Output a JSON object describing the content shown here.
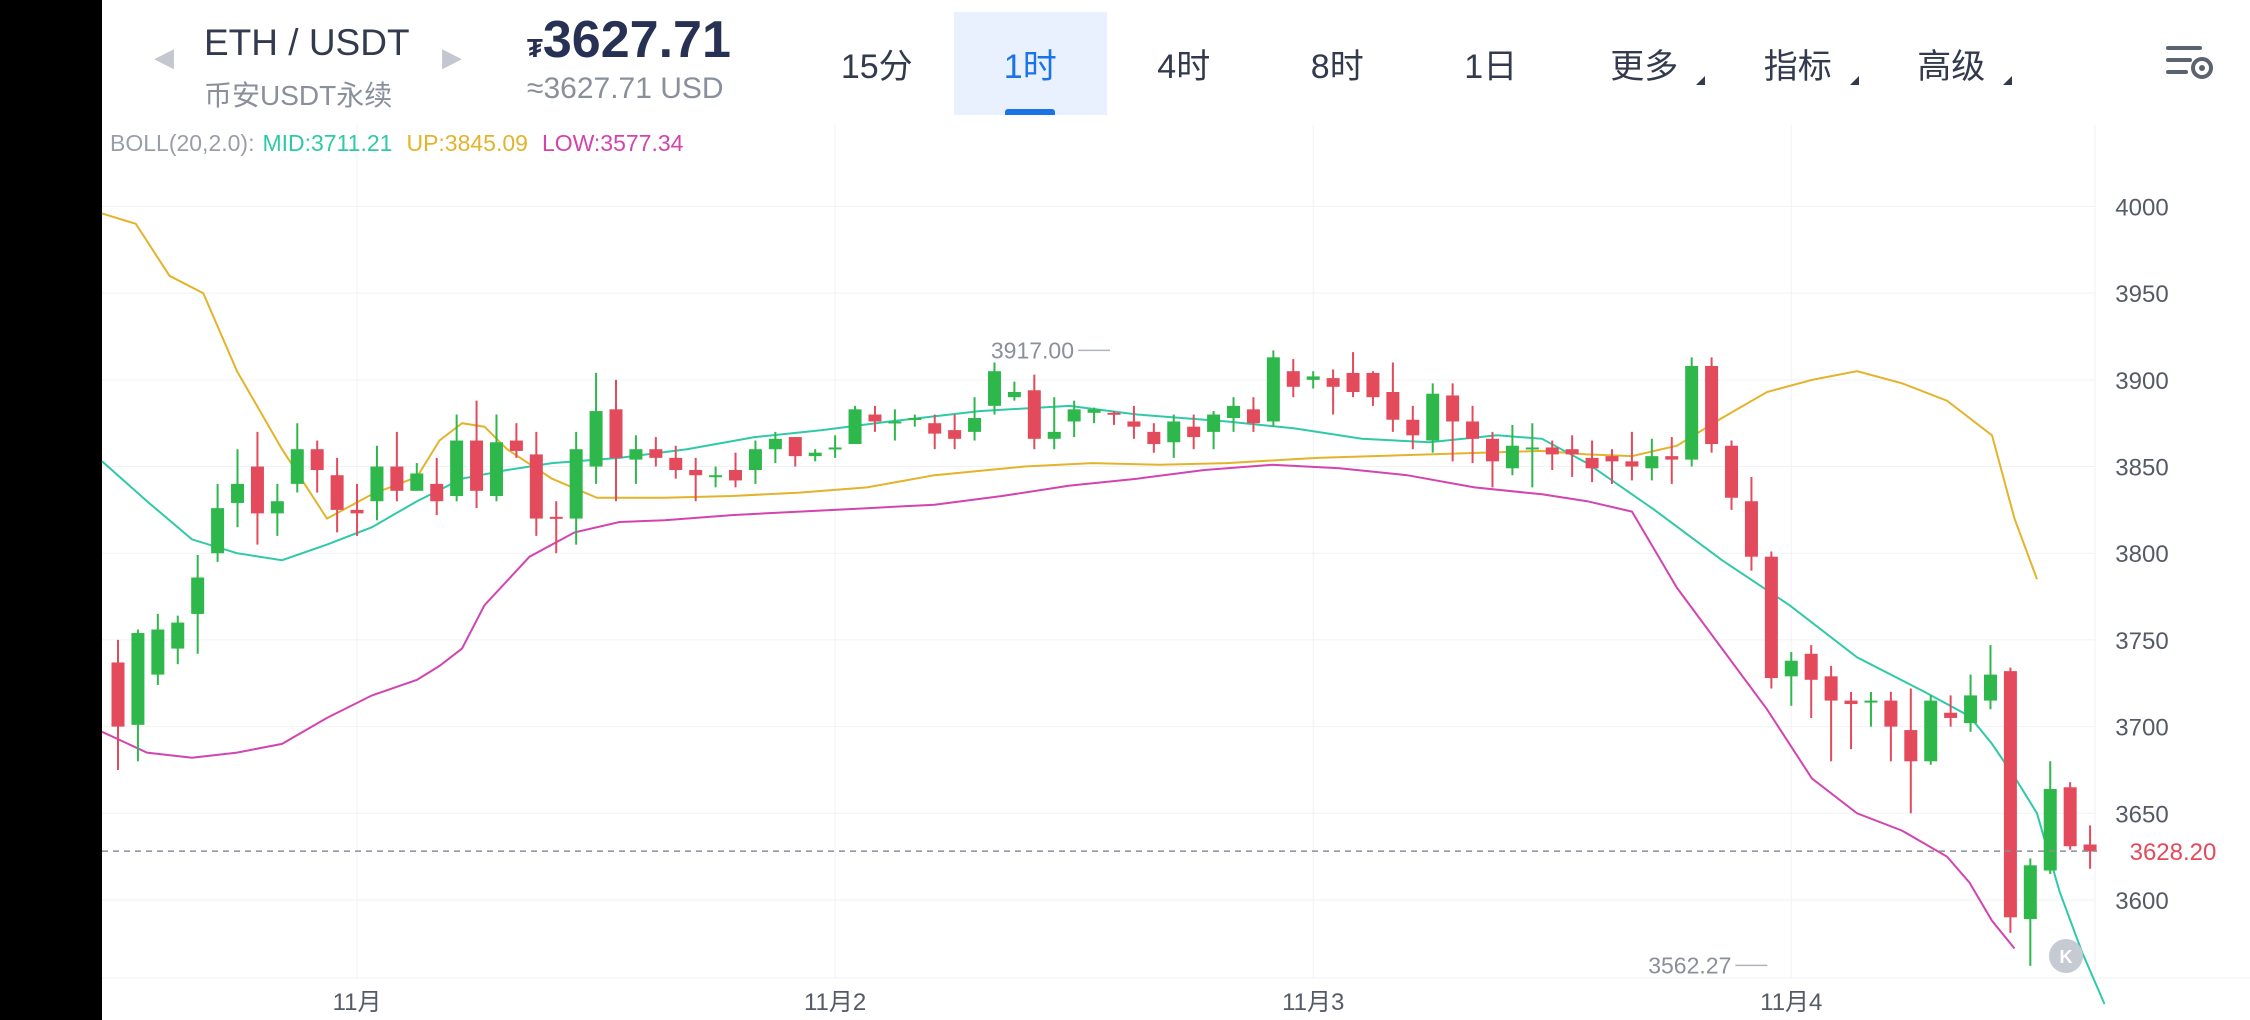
{
  "header": {
    "pair": "ETH / USDT",
    "market": "币安USDT永续",
    "currency_symbol": "₮",
    "price": "3627.71",
    "price_usd": "≈3627.71 USD",
    "tabs": [
      {
        "label": "15分",
        "active": false,
        "dropdown": false
      },
      {
        "label": "1时",
        "active": true,
        "dropdown": false
      },
      {
        "label": "4时",
        "active": false,
        "dropdown": false
      },
      {
        "label": "8时",
        "active": false,
        "dropdown": false
      },
      {
        "label": "1日",
        "active": false,
        "dropdown": false
      },
      {
        "label": "更多",
        "active": false,
        "dropdown": true
      },
      {
        "label": "指标",
        "active": false,
        "dropdown": true
      },
      {
        "label": "高级",
        "active": false,
        "dropdown": true
      }
    ],
    "icons": {
      "prev": "triangle-left-icon",
      "next": "triangle-right-icon",
      "settings": "chart-settings-icon",
      "close": "close-icon"
    }
  },
  "colors": {
    "up": "#2eb84c",
    "down": "#e34a5c",
    "mid": "#30c9a8",
    "upper": "#e3b42b",
    "lower": "#d244b0",
    "accent": "#1b73e8"
  },
  "chart_data": {
    "type": "candlestick",
    "indicator": {
      "label": "BOLL(20,2.0):",
      "mid": "MID:3711.21",
      "up": "UP:3845.09",
      "low": "LOW:3577.34"
    },
    "y_ticks": [
      3600,
      3650,
      3700,
      3750,
      3800,
      3850,
      3900,
      3950,
      4000
    ],
    "y_range": [
      3555,
      4047
    ],
    "x_labels": [
      {
        "label": "11月",
        "i": 12
      },
      {
        "label": "11月2",
        "i": 36
      },
      {
        "label": "11月3",
        "i": 60
      },
      {
        "label": "11月4",
        "i": 84
      }
    ],
    "current_price": "3628.20",
    "current_value": 3628.2,
    "max_label": {
      "text": "3917.00",
      "i": 50,
      "value": 3917
    },
    "min_label": {
      "text": "3562.27",
      "i": 83,
      "value": 3562.27
    },
    "candles": [
      [
        3737,
        3700,
        3750,
        3675
      ],
      [
        3701,
        3754,
        3756,
        3680
      ],
      [
        3730,
        3756,
        3765,
        3724
      ],
      [
        3745,
        3760,
        3764,
        3736
      ],
      [
        3765,
        3786,
        3799,
        3742
      ],
      [
        3800,
        3826,
        3840,
        3795
      ],
      [
        3829,
        3840,
        3860,
        3815
      ],
      [
        3850,
        3823,
        3870,
        3805
      ],
      [
        3823,
        3830,
        3840,
        3810
      ],
      [
        3840,
        3860,
        3875,
        3835
      ],
      [
        3860,
        3848,
        3865,
        3835
      ],
      [
        3845,
        3825,
        3855,
        3812
      ],
      [
        3825,
        3823,
        3840,
        3810
      ],
      [
        3830,
        3850,
        3862,
        3819
      ],
      [
        3850,
        3836,
        3870,
        3830
      ],
      [
        3836,
        3846,
        3852,
        3836
      ],
      [
        3840,
        3830,
        3855,
        3822
      ],
      [
        3833,
        3865,
        3880,
        3830
      ],
      [
        3865,
        3836,
        3888,
        3826
      ],
      [
        3833,
        3864,
        3880,
        3830
      ],
      [
        3865,
        3859,
        3875,
        3855
      ],
      [
        3857,
        3820,
        3870,
        3810
      ],
      [
        3821,
        3820,
        3830,
        3800
      ],
      [
        3820,
        3860,
        3870,
        3805
      ],
      [
        3850,
        3882,
        3904,
        3840
      ],
      [
        3883,
        3855,
        3900,
        3830
      ],
      [
        3854,
        3860,
        3868,
        3840
      ],
      [
        3860,
        3855,
        3867,
        3850
      ],
      [
        3855,
        3848,
        3862,
        3843
      ],
      [
        3848,
        3845,
        3855,
        3830
      ],
      [
        3845,
        3845,
        3850,
        3838
      ],
      [
        3848,
        3842,
        3858,
        3838
      ],
      [
        3848,
        3860,
        3865,
        3840
      ],
      [
        3860,
        3866,
        3870,
        3852
      ],
      [
        3867,
        3856,
        3867,
        3850
      ],
      [
        3856,
        3858,
        3860,
        3853
      ],
      [
        3860,
        3861,
        3868,
        3855
      ],
      [
        3863,
        3883,
        3885,
        3863
      ],
      [
        3880,
        3876,
        3885,
        3870
      ],
      [
        3875,
        3876,
        3883,
        3865
      ],
      [
        3878,
        3878,
        3880,
        3873
      ],
      [
        3875,
        3869,
        3880,
        3860
      ],
      [
        3871,
        3866,
        3880,
        3860
      ],
      [
        3870,
        3878,
        3890,
        3865
      ],
      [
        3885,
        3905,
        3910,
        3880
      ],
      [
        3890,
        3893,
        3899,
        3888
      ],
      [
        3894,
        3866,
        3903,
        3860
      ],
      [
        3866,
        3870,
        3890,
        3860
      ],
      [
        3876,
        3883,
        3888,
        3867
      ],
      [
        3881,
        3883,
        3884,
        3875
      ],
      [
        3881,
        3880,
        3882,
        3874
      ],
      [
        3876,
        3873,
        3885,
        3866
      ],
      [
        3870,
        3863,
        3875,
        3858
      ],
      [
        3864,
        3876,
        3880,
        3855
      ],
      [
        3873,
        3867,
        3880,
        3860
      ],
      [
        3870,
        3880,
        3882,
        3860
      ],
      [
        3878,
        3885,
        3890,
        3870
      ],
      [
        3883,
        3875,
        3890,
        3870
      ],
      [
        3876,
        3913,
        3917,
        3873
      ],
      [
        3905,
        3896,
        3912,
        3890
      ],
      [
        3900,
        3902,
        3905,
        3895
      ],
      [
        3901,
        3896,
        3906,
        3880
      ],
      [
        3904,
        3893,
        3916,
        3890
      ],
      [
        3904,
        3890,
        3905,
        3885
      ],
      [
        3893,
        3877,
        3910,
        3870
      ],
      [
        3877,
        3868,
        3885,
        3860
      ],
      [
        3865,
        3892,
        3898,
        3858
      ],
      [
        3891,
        3876,
        3898,
        3853
      ],
      [
        3876,
        3866,
        3885,
        3852
      ],
      [
        3866,
        3853,
        3870,
        3838
      ],
      [
        3849,
        3862,
        3874,
        3845
      ],
      [
        3860,
        3861,
        3875,
        3838
      ],
      [
        3861,
        3857,
        3865,
        3848
      ],
      [
        3860,
        3857,
        3868,
        3844
      ],
      [
        3855,
        3849,
        3865,
        3841
      ],
      [
        3856,
        3853,
        3860,
        3840
      ],
      [
        3853,
        3850,
        3870,
        3842
      ],
      [
        3849,
        3856,
        3866,
        3842
      ],
      [
        3856,
        3854,
        3867,
        3840
      ],
      [
        3854,
        3908,
        3913,
        3850
      ],
      [
        3908,
        3863,
        3913,
        3858
      ],
      [
        3862,
        3832,
        3865,
        3825
      ],
      [
        3830,
        3798,
        3844,
        3790
      ],
      [
        3798,
        3728,
        3801,
        3722
      ],
      [
        3729,
        3738,
        3743,
        3712
      ],
      [
        3742,
        3727,
        3747,
        3705
      ],
      [
        3729,
        3715,
        3735,
        3680
      ],
      [
        3715,
        3713,
        3720,
        3687
      ],
      [
        3714,
        3715,
        3720,
        3700
      ],
      [
        3715,
        3700,
        3720,
        3680
      ],
      [
        3698,
        3680,
        3722,
        3650
      ],
      [
        3680,
        3715,
        3718,
        3678
      ],
      [
        3708,
        3705,
        3718,
        3700
      ],
      [
        3702,
        3718,
        3730,
        3697
      ],
      [
        3715,
        3730,
        3747,
        3710
      ],
      [
        3732,
        3590,
        3734,
        3581
      ],
      [
        3589,
        3620,
        3624,
        3562
      ],
      [
        3617,
        3664,
        3680,
        3615
      ],
      [
        3665,
        3631,
        3668,
        3629
      ],
      [
        3632,
        3628,
        3643,
        3618
      ]
    ],
    "boll_mid": [
      [
        0,
        3853
      ],
      [
        4,
        3830
      ],
      [
        8,
        3808
      ],
      [
        12,
        3800
      ],
      [
        16,
        3796
      ],
      [
        20,
        3805
      ],
      [
        24,
        3815
      ],
      [
        28,
        3830
      ],
      [
        32,
        3843
      ],
      [
        36,
        3848
      ],
      [
        40,
        3852
      ],
      [
        46,
        3855
      ],
      [
        52,
        3860
      ],
      [
        58,
        3867
      ],
      [
        64,
        3871
      ],
      [
        70,
        3876
      ],
      [
        78,
        3882
      ],
      [
        86,
        3885
      ],
      [
        92,
        3880
      ],
      [
        100,
        3876
      ],
      [
        106,
        3872
      ],
      [
        112,
        3866
      ],
      [
        118,
        3864
      ],
      [
        124,
        3868
      ],
      [
        128,
        3866
      ],
      [
        132,
        3852
      ],
      [
        138,
        3825
      ],
      [
        144,
        3796
      ],
      [
        150,
        3770
      ],
      [
        156,
        3740
      ],
      [
        162,
        3720
      ],
      [
        166,
        3706
      ],
      [
        168,
        3690
      ],
      [
        170,
        3671
      ],
      [
        172,
        3650
      ],
      [
        174,
        3605
      ],
      [
        176,
        3570
      ],
      [
        178,
        3540
      ]
    ],
    "boll_upper": [
      [
        0,
        3996
      ],
      [
        3,
        3990
      ],
      [
        6,
        3960
      ],
      [
        9,
        3950
      ],
      [
        12,
        3905
      ],
      [
        16,
        3860
      ],
      [
        20,
        3820
      ],
      [
        24,
        3834
      ],
      [
        28,
        3844
      ],
      [
        30,
        3865
      ],
      [
        32,
        3875
      ],
      [
        34,
        3873
      ],
      [
        36,
        3860
      ],
      [
        40,
        3843
      ],
      [
        44,
        3832
      ],
      [
        50,
        3832
      ],
      [
        56,
        3833
      ],
      [
        62,
        3835
      ],
      [
        68,
        3838
      ],
      [
        74,
        3845
      ],
      [
        82,
        3850
      ],
      [
        88,
        3852
      ],
      [
        94,
        3851
      ],
      [
        100,
        3852
      ],
      [
        108,
        3855
      ],
      [
        118,
        3857
      ],
      [
        128,
        3859
      ],
      [
        132,
        3857
      ],
      [
        136,
        3856
      ],
      [
        140,
        3862
      ],
      [
        144,
        3878
      ],
      [
        148,
        3893
      ],
      [
        152,
        3900
      ],
      [
        156,
        3905
      ],
      [
        160,
        3898
      ],
      [
        164,
        3888
      ],
      [
        168,
        3868
      ],
      [
        170,
        3820
      ],
      [
        172,
        3785
      ]
    ],
    "boll_lower": [
      [
        0,
        3697
      ],
      [
        4,
        3685
      ],
      [
        8,
        3682
      ],
      [
        12,
        3685
      ],
      [
        16,
        3690
      ],
      [
        20,
        3705
      ],
      [
        24,
        3718
      ],
      [
        28,
        3727
      ],
      [
        30,
        3735
      ],
      [
        32,
        3745
      ],
      [
        34,
        3770
      ],
      [
        38,
        3798
      ],
      [
        42,
        3812
      ],
      [
        46,
        3818
      ],
      [
        50,
        3819
      ],
      [
        56,
        3822
      ],
      [
        62,
        3824
      ],
      [
        68,
        3826
      ],
      [
        74,
        3828
      ],
      [
        80,
        3833
      ],
      [
        86,
        3839
      ],
      [
        92,
        3843
      ],
      [
        98,
        3848
      ],
      [
        104,
        3851
      ],
      [
        110,
        3849
      ],
      [
        116,
        3845
      ],
      [
        122,
        3838
      ],
      [
        128,
        3834
      ],
      [
        132,
        3830
      ],
      [
        136,
        3824
      ],
      [
        140,
        3780
      ],
      [
        144,
        3745
      ],
      [
        148,
        3710
      ],
      [
        152,
        3670
      ],
      [
        156,
        3650
      ],
      [
        160,
        3640
      ],
      [
        164,
        3625
      ],
      [
        166,
        3610
      ],
      [
        168,
        3588
      ],
      [
        170,
        3572
      ]
    ]
  }
}
